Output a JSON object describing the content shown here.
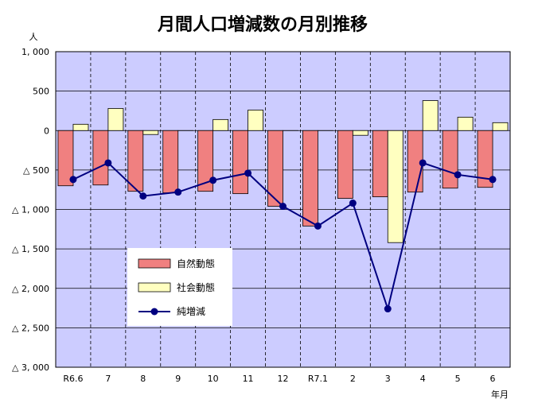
{
  "chart_data": {
    "type": "bar",
    "title": "月間人口増減数の月別推移",
    "ylabel": "人",
    "xlabel": "年月",
    "ylim": [
      -3000,
      1000
    ],
    "yticks": [
      1000,
      500,
      0,
      -500,
      -1000,
      -1500,
      -2000,
      -2500,
      -3000
    ],
    "ytick_labels": [
      "1, 000",
      "500",
      "0",
      "△ 500",
      "△ 1, 000",
      "△ 1, 500",
      "△ 2, 000",
      "△ 2, 500",
      "△ 3, 000"
    ],
    "categories": [
      "R6.6",
      "7",
      "8",
      "9",
      "10",
      "11",
      "12",
      "R7.1",
      "2",
      "3",
      "4",
      "5",
      "6"
    ],
    "grid": true,
    "legend_position": "lower-left",
    "series": [
      {
        "name": "自然動態",
        "type": "bar",
        "color": "#f08080",
        "values": [
          -700,
          -690,
          -770,
          -790,
          -770,
          -800,
          -960,
          -1210,
          -860,
          -840,
          -780,
          -730,
          -720
        ]
      },
      {
        "name": "社会動態",
        "type": "bar",
        "color": "#ffffc0",
        "values": [
          80,
          280,
          -50,
          0,
          140,
          260,
          0,
          0,
          -60,
          -1420,
          380,
          170,
          100
        ]
      },
      {
        "name": "純増減",
        "type": "line",
        "color": "#000080",
        "values": [
          -620,
          -410,
          -830,
          -780,
          -630,
          -540,
          -960,
          -1210,
          -920,
          -2260,
          -410,
          -560,
          -620
        ]
      }
    ],
    "plot_background": "#ccccff"
  }
}
